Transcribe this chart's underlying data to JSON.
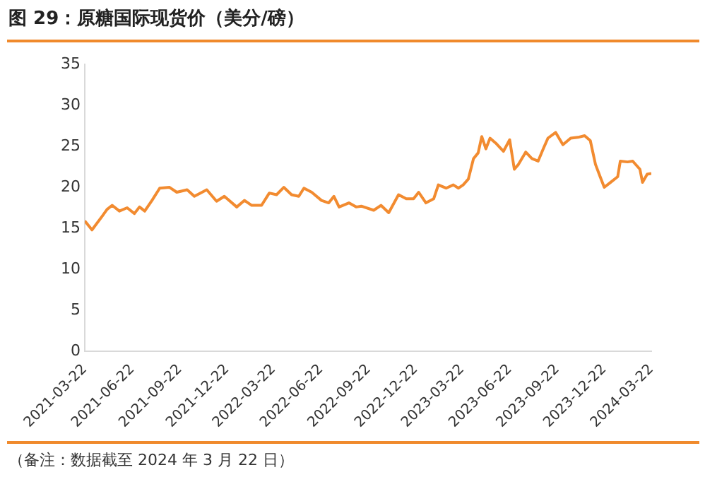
{
  "chart_data": {
    "type": "line",
    "title": "图 29：原糖国际现货价（美分/磅）",
    "x": [
      "2021-03-22",
      "2021-04-05",
      "2021-04-25",
      "2021-05-04",
      "2021-05-14",
      "2021-05-28",
      "2021-06-12",
      "2021-06-26",
      "2021-07-06",
      "2021-07-16",
      "2021-07-30",
      "2021-08-14",
      "2021-09-02",
      "2021-09-16",
      "2021-10-06",
      "2021-10-20",
      "2021-11-13",
      "2021-12-02",
      "2021-12-17",
      "2022-01-10",
      "2022-01-25",
      "2022-02-08",
      "2022-02-27",
      "2022-03-14",
      "2022-03-28",
      "2022-04-11",
      "2022-04-26",
      "2022-05-10",
      "2022-05-20",
      "2022-06-04",
      "2022-06-23",
      "2022-07-07",
      "2022-07-17",
      "2022-07-27",
      "2022-08-15",
      "2022-08-29",
      "2022-09-08",
      "2022-10-02",
      "2022-10-16",
      "2022-10-31",
      "2022-11-19",
      "2022-12-04",
      "2022-12-18",
      "2022-12-28",
      "2023-01-11",
      "2023-01-26",
      "2023-02-04",
      "2023-02-19",
      "2023-03-05",
      "2023-03-15",
      "2023-03-24",
      "2023-04-03",
      "2023-04-13",
      "2023-04-22",
      "2023-04-29",
      "2023-05-07",
      "2023-05-15",
      "2023-05-26",
      "2023-06-10",
      "2023-06-22",
      "2023-07-01",
      "2023-07-09",
      "2023-07-23",
      "2023-08-04",
      "2023-08-16",
      "2023-08-26",
      "2023-09-04",
      "2023-09-19",
      "2023-10-03",
      "2023-10-18",
      "2023-11-01",
      "2023-11-14",
      "2023-11-25",
      "2023-12-05",
      "2023-12-14",
      "2023-12-22",
      "2024-01-03",
      "2024-01-17",
      "2024-01-22",
      "2024-02-05",
      "2024-02-15",
      "2024-02-29",
      "2024-03-05",
      "2024-03-14",
      "2024-03-22"
    ],
    "series": [
      {
        "color": "#f28b30",
        "values": [
          15.9,
          14.8,
          16.5,
          17.3,
          17.8,
          17.1,
          17.5,
          16.8,
          17.6,
          17.1,
          18.4,
          19.9,
          20.0,
          19.4,
          19.7,
          18.9,
          19.7,
          18.3,
          18.9,
          17.6,
          18.4,
          17.8,
          17.8,
          19.3,
          19.1,
          20.0,
          19.1,
          18.9,
          19.9,
          19.4,
          18.4,
          18.1,
          18.9,
          17.6,
          18.1,
          17.6,
          17.7,
          17.2,
          17.8,
          16.9,
          19.1,
          18.6,
          18.6,
          19.4,
          18.1,
          18.6,
          20.3,
          19.9,
          20.3,
          19.9,
          20.3,
          21.0,
          23.5,
          24.2,
          26.2,
          24.7,
          26.0,
          25.4,
          24.4,
          25.8,
          22.2,
          22.8,
          24.3,
          23.5,
          23.2,
          24.7,
          26.0,
          26.7,
          25.2,
          26.0,
          26.1,
          26.3,
          25.7,
          22.8,
          21.3,
          20.0,
          20.6,
          21.3,
          23.2,
          23.1,
          23.2,
          22.2,
          20.6,
          21.6,
          21.7
        ]
      }
    ],
    "xlim": [
      "2021-03-22",
      "2024-03-22"
    ],
    "xticks": [
      "2021-03-22",
      "2021-06-22",
      "2021-09-22",
      "2021-12-22",
      "2022-03-22",
      "2022-06-22",
      "2022-09-22",
      "2022-12-22",
      "2023-03-22",
      "2023-06-22",
      "2023-09-22",
      "2023-12-22",
      "2024-03-22"
    ],
    "ylim": [
      0,
      35
    ],
    "yticks": [
      0,
      5,
      10,
      15,
      20,
      25,
      30,
      35
    ],
    "grid": false,
    "legend": false,
    "marker": "none",
    "line_style": "solid",
    "annotations": [
      "（备注：数据截至 2024 年 3 月 22 日）"
    ]
  }
}
